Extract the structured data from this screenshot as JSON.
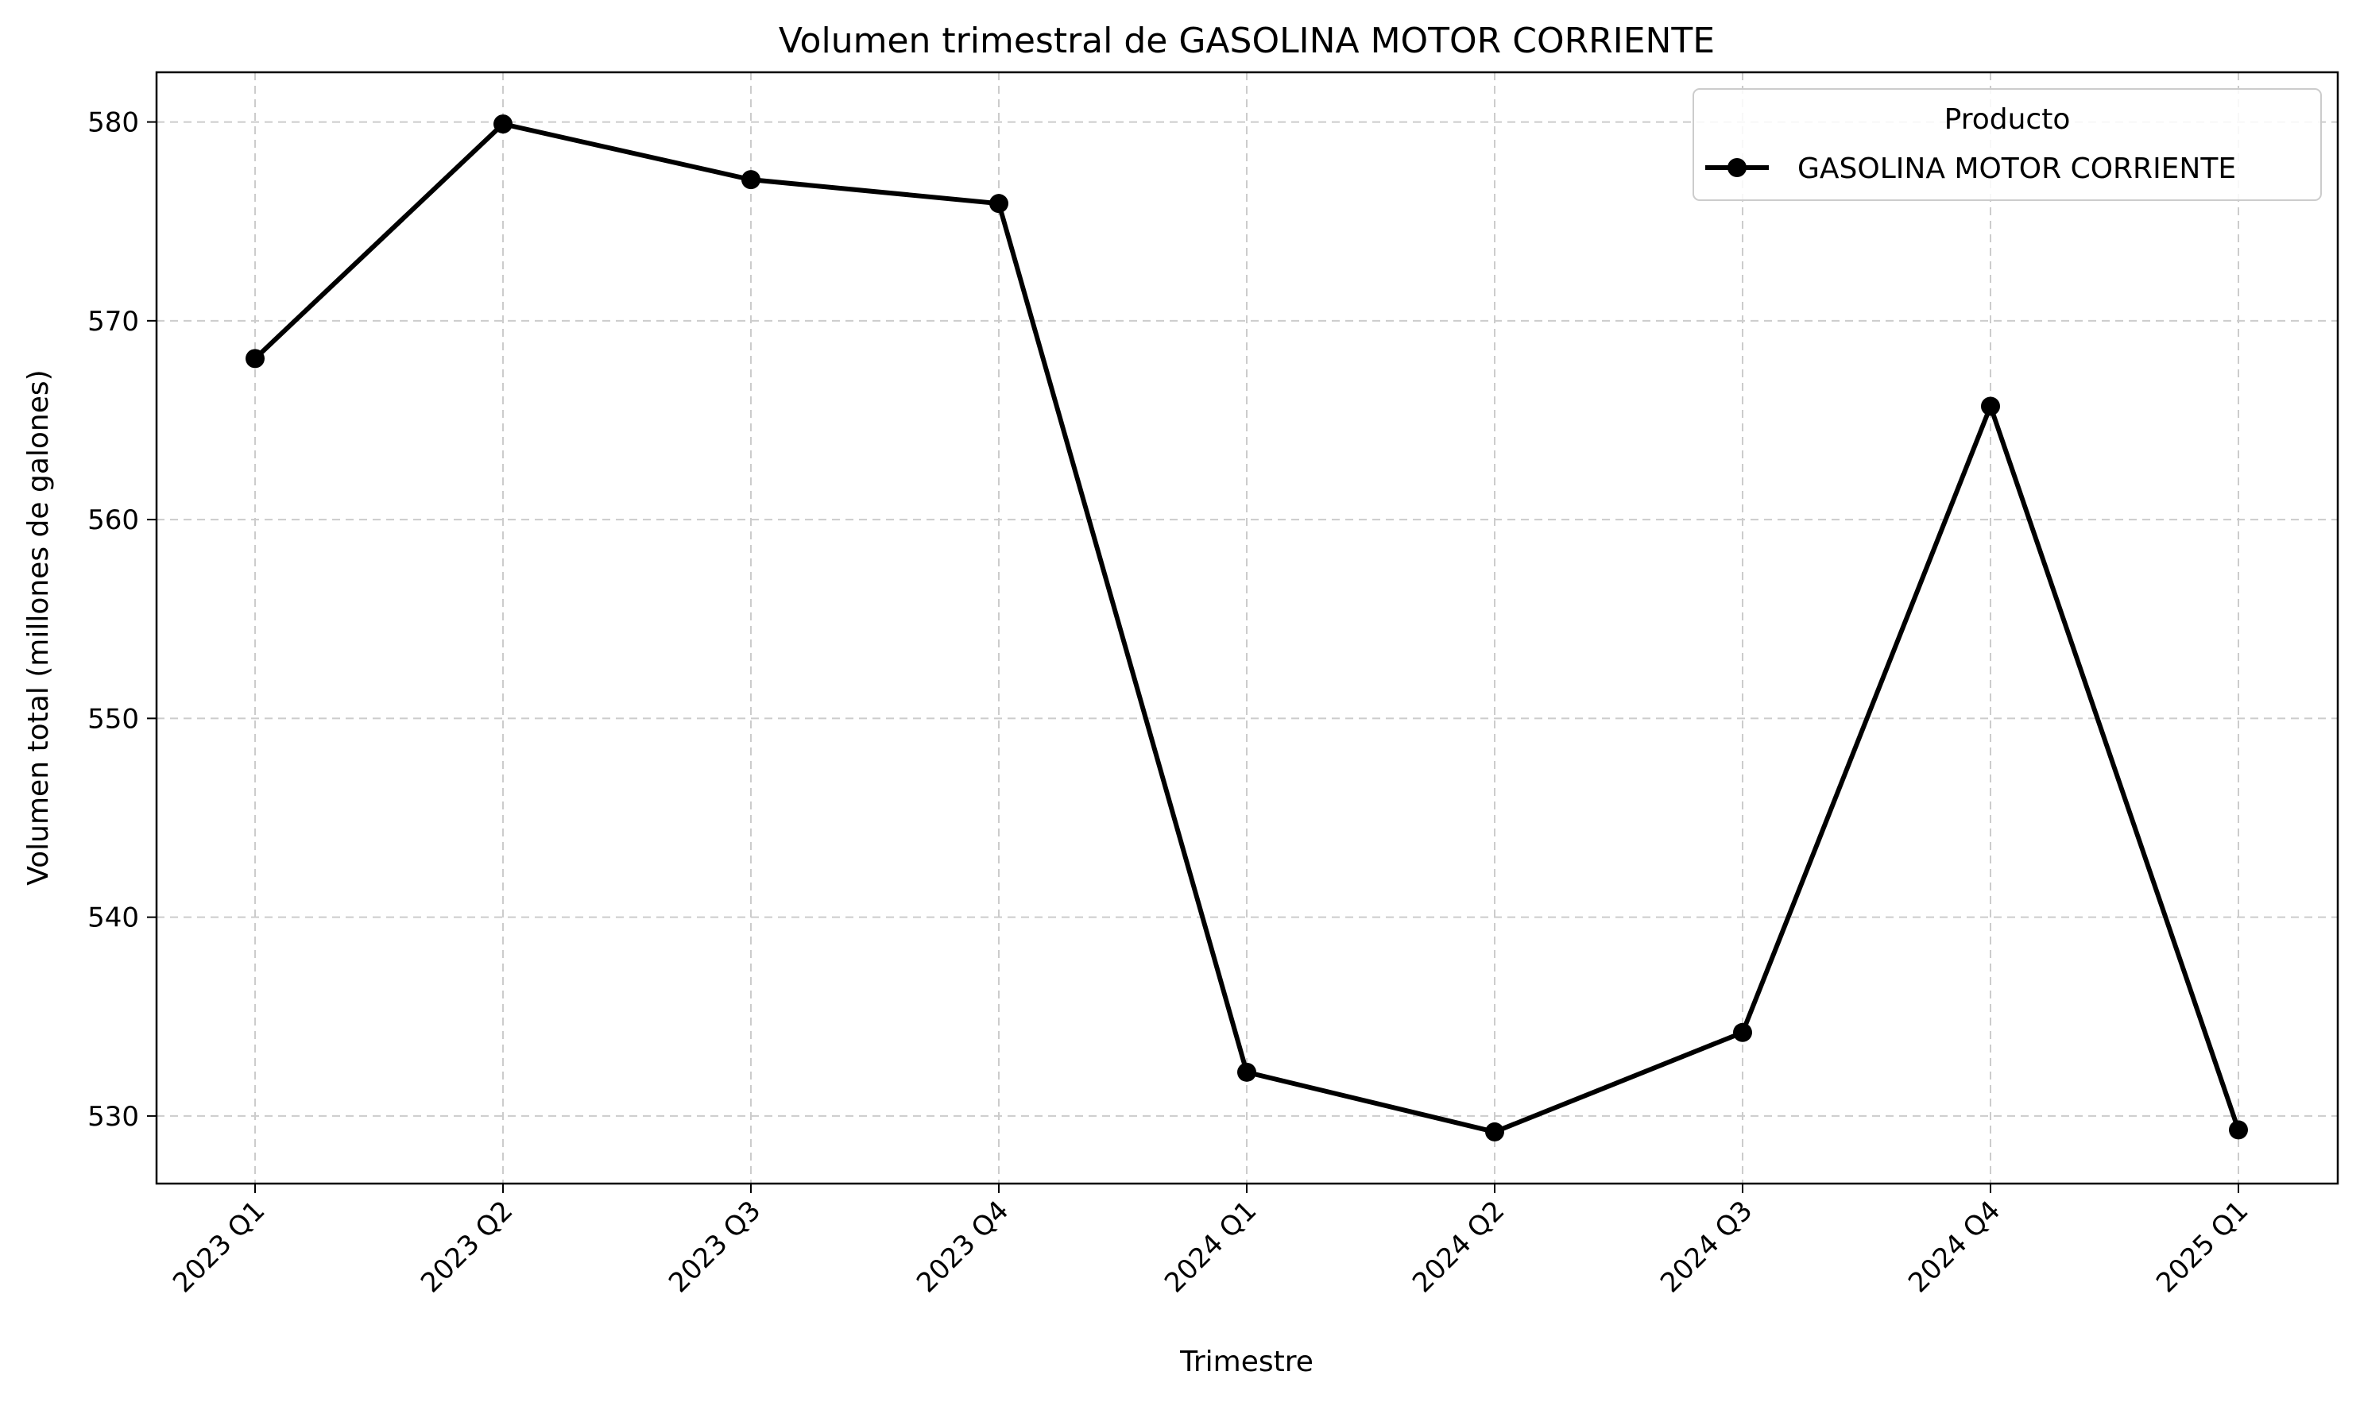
{
  "chart_data": {
    "type": "line",
    "title": "Volumen trimestral de GASOLINA MOTOR CORRIENTE",
    "xlabel": "Trimestre",
    "ylabel": "Volumen total (millones de galones)",
    "categories": [
      "2023 Q1",
      "2023 Q2",
      "2023 Q3",
      "2023 Q4",
      "2024 Q1",
      "2024 Q2",
      "2024 Q3",
      "2024 Q4",
      "2025 Q1"
    ],
    "series": [
      {
        "name": "GASOLINA MOTOR CORRIENTE",
        "values": [
          568.1,
          579.9,
          577.1,
          575.9,
          532.2,
          529.2,
          534.2,
          565.7,
          529.3
        ],
        "color": "#000000"
      }
    ],
    "ylim": [
      526.6,
      582.5
    ],
    "yticks": [
      530,
      540,
      550,
      560,
      570,
      580
    ],
    "grid": true,
    "legend": {
      "title": "Producto",
      "placement": "top-right"
    }
  }
}
